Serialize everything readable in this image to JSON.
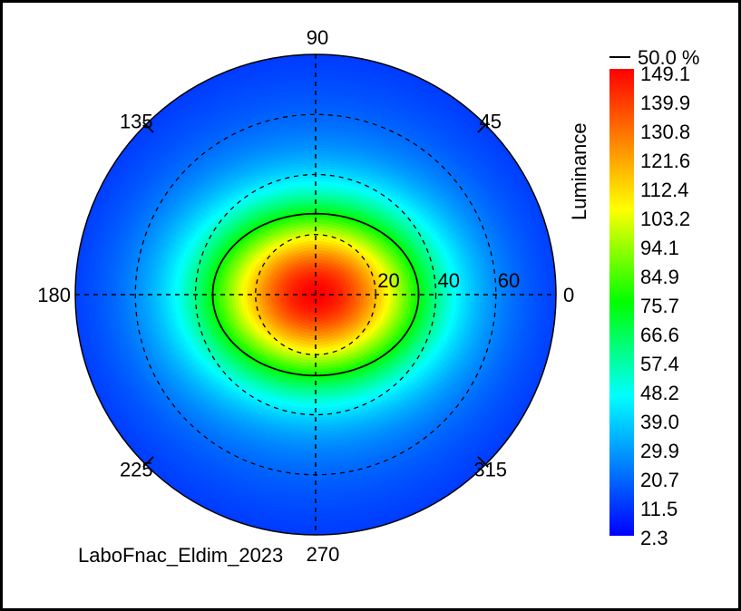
{
  "chart_data": {
    "type": "heatmap",
    "subtype": "polar",
    "colorbar_label": "Luminance",
    "colorbar_ticks": [
      "149.1",
      "139.9",
      "130.8",
      "121.6",
      "112.4",
      "103.2",
      "94.1",
      "84.9",
      "75.7",
      "66.6",
      "57.4",
      "48.2",
      "39.0",
      "29.9",
      "20.7",
      "11.5",
      "2.3"
    ],
    "value_range": [
      2.3,
      149.1
    ],
    "contour": {
      "label": "50.0 %",
      "level_fraction": 0.5
    },
    "angle_ticks": [
      {
        "angle": 0,
        "label": "0"
      },
      {
        "angle": 45,
        "label": "45"
      },
      {
        "angle": 90,
        "label": "90"
      },
      {
        "angle": 135,
        "label": "135"
      },
      {
        "angle": 180,
        "label": "180"
      },
      {
        "angle": 225,
        "label": "225"
      },
      {
        "angle": 270,
        "label": "270"
      },
      {
        "angle": 315,
        "label": "315"
      }
    ],
    "radial_ticks": [
      {
        "value": 20,
        "label": "20"
      },
      {
        "value": 40,
        "label": "40"
      },
      {
        "value": 60,
        "label": "60"
      }
    ],
    "radial_max": 80,
    "grid": true,
    "peak_value": 149.1,
    "peak_position": {
      "theta_deg": 0,
      "r": 0
    },
    "footer": "LaboFnac_Eldim_2023"
  },
  "colors": {
    "colormap": [
      "#0000ff",
      "#0055ff",
      "#00aaff",
      "#00ffff",
      "#00ff80",
      "#00ff00",
      "#80ff00",
      "#ffff00",
      "#ffaa00",
      "#ff5500",
      "#ff0000"
    ]
  }
}
